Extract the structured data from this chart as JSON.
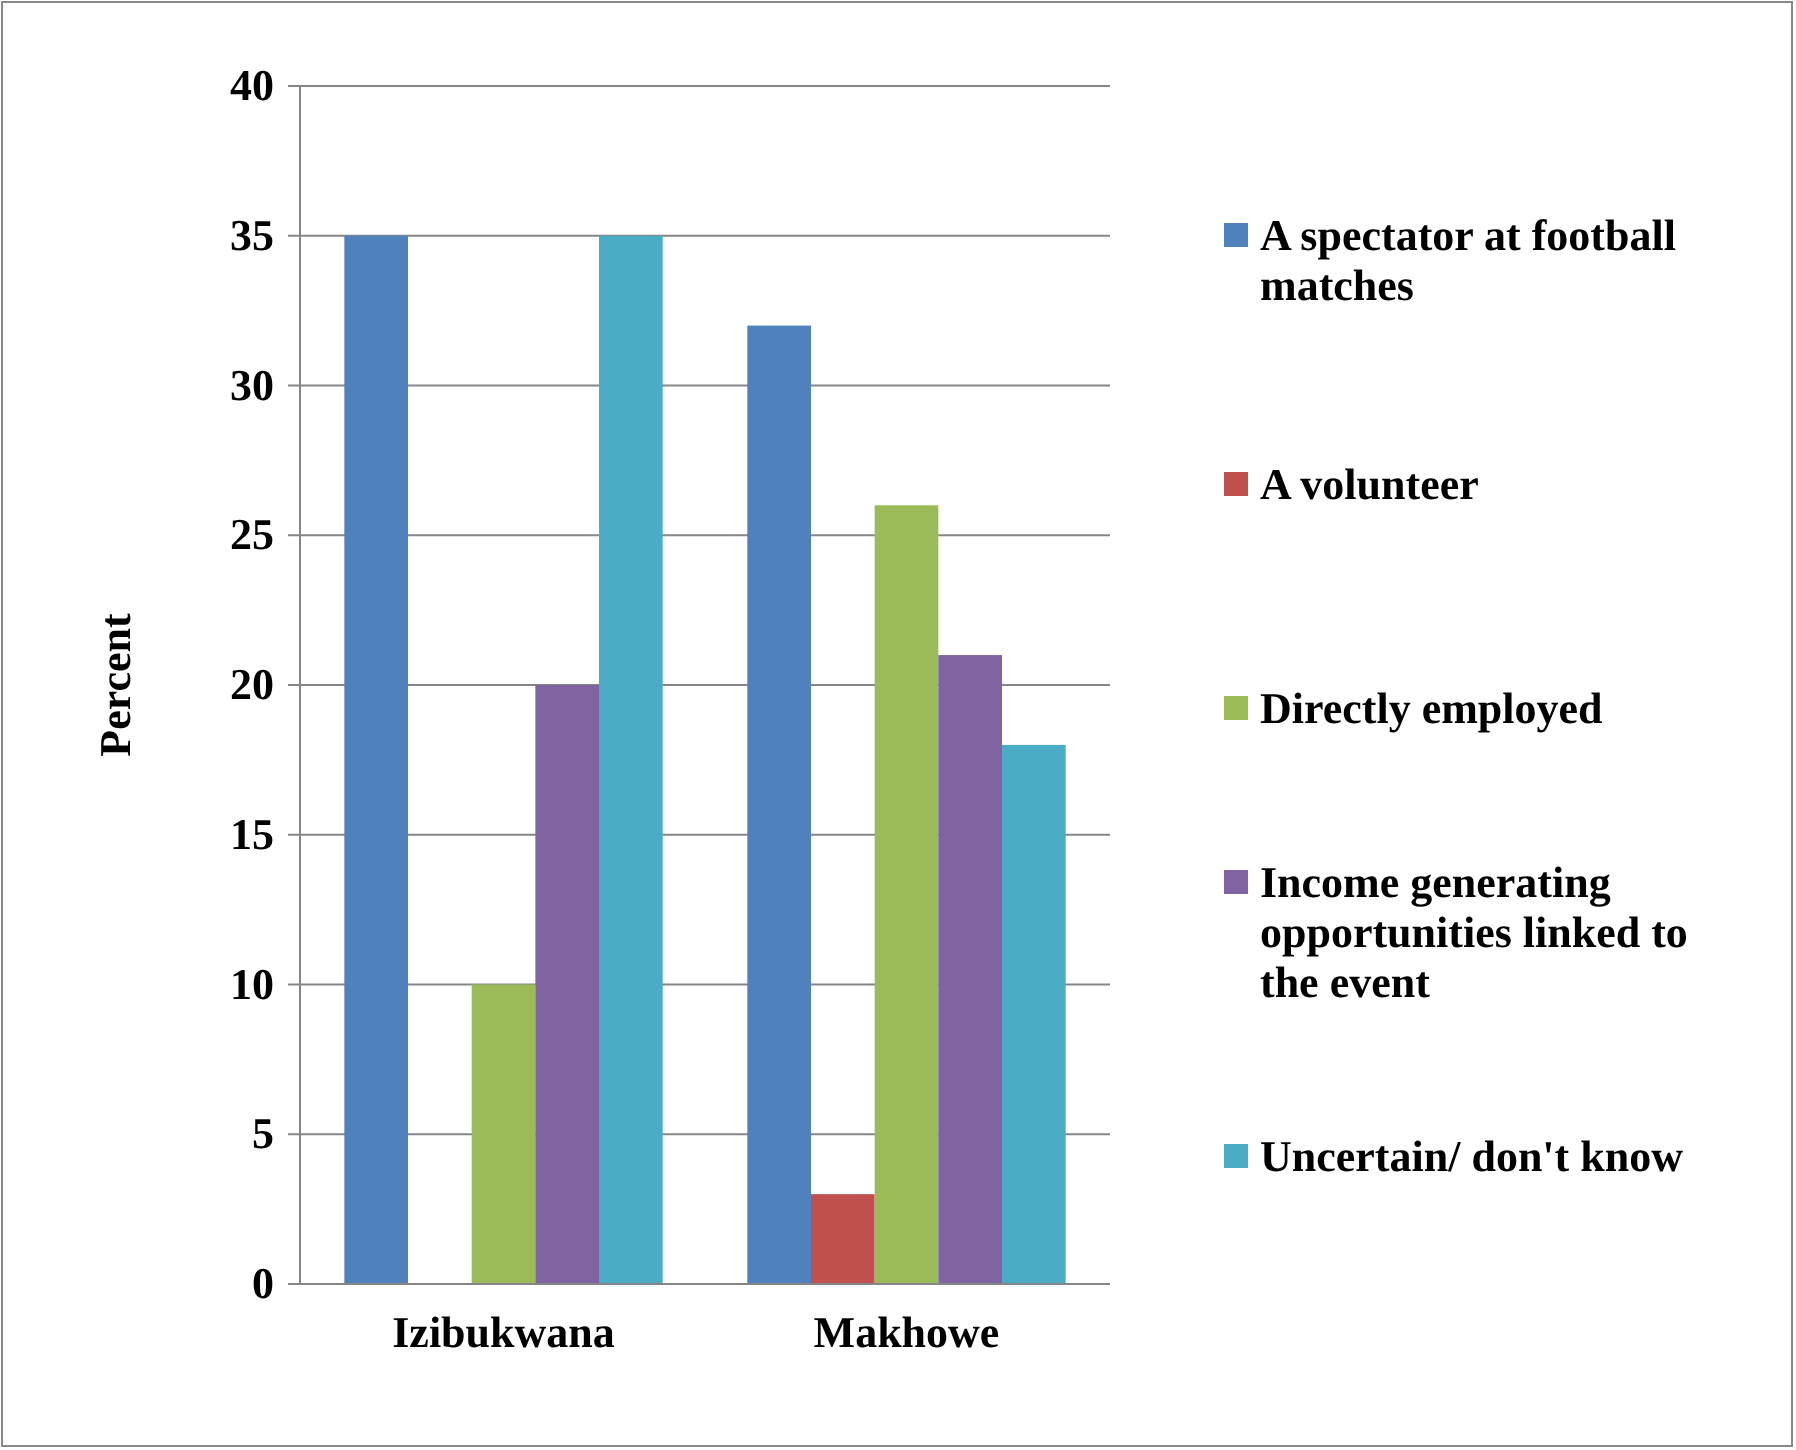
{
  "chart_data": {
    "type": "bar",
    "ylabel": "Percent",
    "categories": [
      "Izibukwana",
      "Makhowe"
    ],
    "series": [
      {
        "name": "A spectator at football matches",
        "color": "#4f81bd",
        "values": [
          35,
          32
        ]
      },
      {
        "name": "A volunteer",
        "color": "#c0504d",
        "values": [
          0,
          3
        ]
      },
      {
        "name": "Directly employed",
        "color": "#9bbb59",
        "values": [
          10,
          26
        ]
      },
      {
        "name": "Income generating opportunities linked to the event",
        "color": "#8064a2",
        "values": [
          20,
          21
        ]
      },
      {
        "name": "Uncertain/ don't know",
        "color": "#4bacc6",
        "values": [
          35,
          18
        ]
      }
    ],
    "ylim": [
      0,
      40
    ],
    "yticks": [
      0,
      5,
      10,
      15,
      20,
      25,
      30,
      35,
      40
    ],
    "grid": "y",
    "legend": "right"
  }
}
